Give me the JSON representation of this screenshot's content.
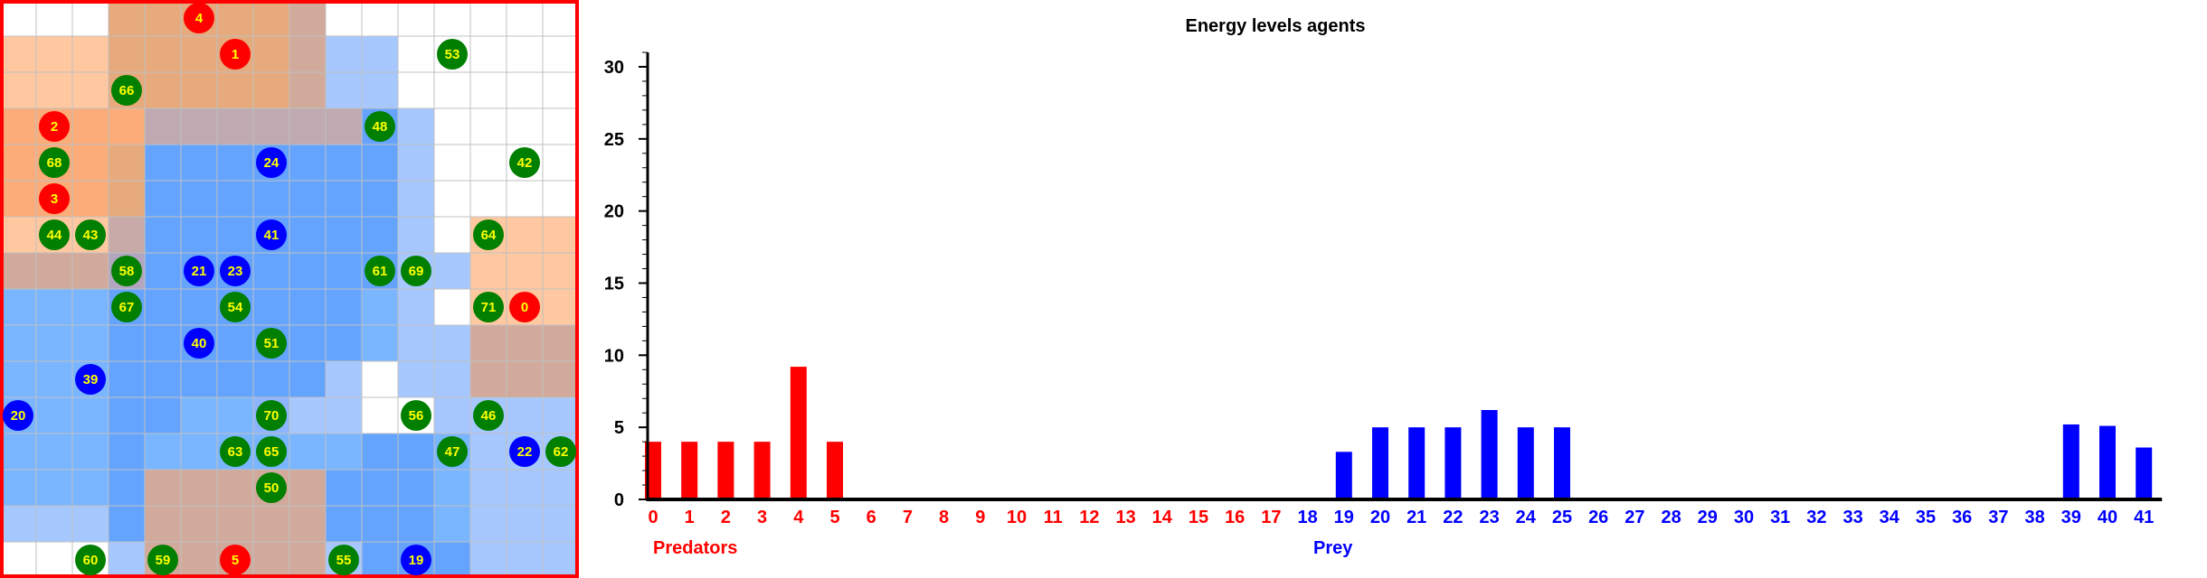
{
  "grid": {
    "rows": 16,
    "cols": 16,
    "border_color": "#ff0000",
    "cell_colors": {
      "W": "#ffffff",
      "o": "#ffc8a0",
      "O": "#fbac78",
      "T": "#e6aa7c",
      "t": "#d2aa9c",
      "g": "#bfaab2",
      "v": "#c8aaa8",
      "k": "#b2a6bf",
      "b": "#a6c8ff",
      "B": "#64a4ff",
      "m": "#7ab6ff",
      "p": "#8cb4ff"
    },
    "cells": [
      "WWWTTTTTtWWWWWWW",
      "oooTTTTTtbbWWWWW",
      "oooTTTTTtbbWWWWW",
      "OOOOggggggBbWWWW",
      "OOOTBBBBBBBbWWWW",
      "OOOTBBBBBBBbWWWW",
      "ooovBBBBBBBbWooo",
      "tttkBBBBBBBbbooo",
      "mmmBBBBBBBmbWooo",
      "mmmBBBBBBBmbbttt",
      "mmmBBBBBBbWbbttt",
      "mmmBBmmpbbWWbbbb",
      "mmmBmmmmmmBBmbbb",
      "mmmBtttttBBBmbbb",
      "bbbBtttttBBBmbbb",
      "WWWbtttttbBBBbbb"
    ],
    "agents": [
      {
        "id": "4",
        "kind": "predator",
        "col": 5.5,
        "row": 0.5
      },
      {
        "id": "1",
        "kind": "predator",
        "col": 6.5,
        "row": 1.5
      },
      {
        "id": "53",
        "kind": "prey_green",
        "col": 12.5,
        "row": 1.5
      },
      {
        "id": "66",
        "kind": "prey_green",
        "col": 3.5,
        "row": 2.5
      },
      {
        "id": "2",
        "kind": "predator",
        "col": 1.5,
        "row": 3.5
      },
      {
        "id": "48",
        "kind": "prey_green",
        "col": 10.5,
        "row": 3.5
      },
      {
        "id": "68",
        "kind": "prey_green",
        "col": 1.5,
        "row": 4.5
      },
      {
        "id": "24",
        "kind": "prey_blue",
        "col": 7.5,
        "row": 4.5
      },
      {
        "id": "42",
        "kind": "prey_green",
        "col": 14.5,
        "row": 4.5
      },
      {
        "id": "3",
        "kind": "predator",
        "col": 1.5,
        "row": 5.5
      },
      {
        "id": "44",
        "kind": "prey_green",
        "col": 1.5,
        "row": 6.5
      },
      {
        "id": "43",
        "kind": "prey_green",
        "col": 2.5,
        "row": 6.5
      },
      {
        "id": "41",
        "kind": "prey_blue",
        "col": 7.5,
        "row": 6.5
      },
      {
        "id": "64",
        "kind": "prey_green",
        "col": 13.5,
        "row": 6.5
      },
      {
        "id": "58",
        "kind": "prey_green",
        "col": 3.5,
        "row": 7.5
      },
      {
        "id": "21",
        "kind": "prey_blue",
        "col": 5.5,
        "row": 7.5
      },
      {
        "id": "23",
        "kind": "prey_blue",
        "col": 6.5,
        "row": 7.5
      },
      {
        "id": "61",
        "kind": "prey_green",
        "col": 10.5,
        "row": 7.5
      },
      {
        "id": "69",
        "kind": "prey_green",
        "col": 11.5,
        "row": 7.5
      },
      {
        "id": "67",
        "kind": "prey_green",
        "col": 3.5,
        "row": 8.5
      },
      {
        "id": "54",
        "kind": "prey_green",
        "col": 6.5,
        "row": 8.5
      },
      {
        "id": "71",
        "kind": "prey_green",
        "col": 13.5,
        "row": 8.5
      },
      {
        "id": "0",
        "kind": "predator",
        "col": 14.5,
        "row": 8.5
      },
      {
        "id": "40",
        "kind": "prey_blue",
        "col": 5.5,
        "row": 9.5
      },
      {
        "id": "51",
        "kind": "prey_green",
        "col": 7.5,
        "row": 9.5
      },
      {
        "id": "39",
        "kind": "prey_blue",
        "col": 2.5,
        "row": 10.5
      },
      {
        "id": "20",
        "kind": "prey_blue",
        "col": 0.5,
        "row": 11.5
      },
      {
        "id": "70",
        "kind": "prey_green",
        "col": 7.5,
        "row": 11.5
      },
      {
        "id": "56",
        "kind": "prey_green",
        "col": 11.5,
        "row": 11.5
      },
      {
        "id": "46",
        "kind": "prey_green",
        "col": 13.5,
        "row": 11.5
      },
      {
        "id": "63",
        "kind": "prey_green",
        "col": 6.5,
        "row": 12.5
      },
      {
        "id": "65",
        "kind": "prey_green",
        "col": 7.5,
        "row": 12.5
      },
      {
        "id": "47",
        "kind": "prey_green",
        "col": 12.5,
        "row": 12.5
      },
      {
        "id": "22",
        "kind": "prey_blue",
        "col": 14.5,
        "row": 12.5
      },
      {
        "id": "62",
        "kind": "prey_green",
        "col": 15.5,
        "row": 12.5
      },
      {
        "id": "50",
        "kind": "prey_green",
        "col": 7.5,
        "row": 13.5
      },
      {
        "id": "60",
        "kind": "prey_green",
        "col": 2.5,
        "row": 15.5
      },
      {
        "id": "59",
        "kind": "prey_green",
        "col": 4.5,
        "row": 15.5
      },
      {
        "id": "5",
        "kind": "predator",
        "col": 6.5,
        "row": 15.5
      },
      {
        "id": "55",
        "kind": "prey_green",
        "col": 9.5,
        "row": 15.5
      },
      {
        "id": "19",
        "kind": "prey_blue",
        "col": 11.5,
        "row": 15.5
      }
    ],
    "agent_colors": {
      "predator": "#ff0000",
      "prey_green": "#007f00",
      "prey_blue": "#0000ff",
      "label": "#ffff00"
    }
  },
  "chart_data": {
    "type": "bar",
    "title": "Energy levels agents",
    "ylim": [
      0,
      31
    ],
    "yticks": [
      0,
      5,
      10,
      15,
      20,
      25,
      30
    ],
    "categories": [
      "0",
      "1",
      "2",
      "3",
      "4",
      "5",
      "6",
      "7",
      "8",
      "9",
      "10",
      "11",
      "12",
      "13",
      "14",
      "15",
      "16",
      "17",
      "18",
      "19",
      "20",
      "21",
      "22",
      "23",
      "24",
      "25",
      "26",
      "27",
      "28",
      "29",
      "30",
      "31",
      "32",
      "33",
      "34",
      "35",
      "36",
      "37",
      "38",
      "39",
      "40",
      "41"
    ],
    "values": [
      4,
      4,
      4,
      4,
      9.2,
      4,
      0,
      0,
      0,
      0,
      0,
      0,
      0,
      0,
      0,
      0,
      0,
      0,
      0,
      3.3,
      5,
      5,
      5,
      6.2,
      5,
      5,
      0,
      0,
      0,
      0,
      0,
      0,
      0,
      0,
      0,
      0,
      0,
      0,
      0,
      5.2,
      5.1,
      3.6
    ],
    "predator_count": 18,
    "groups": [
      {
        "label": "Predators",
        "color": "#ff0000"
      },
      {
        "label": "Prey",
        "color": "#0000ff"
      }
    ],
    "colors": {
      "predators": "#ff0000",
      "prey": "#0000ff",
      "axis": "#000000"
    }
  }
}
